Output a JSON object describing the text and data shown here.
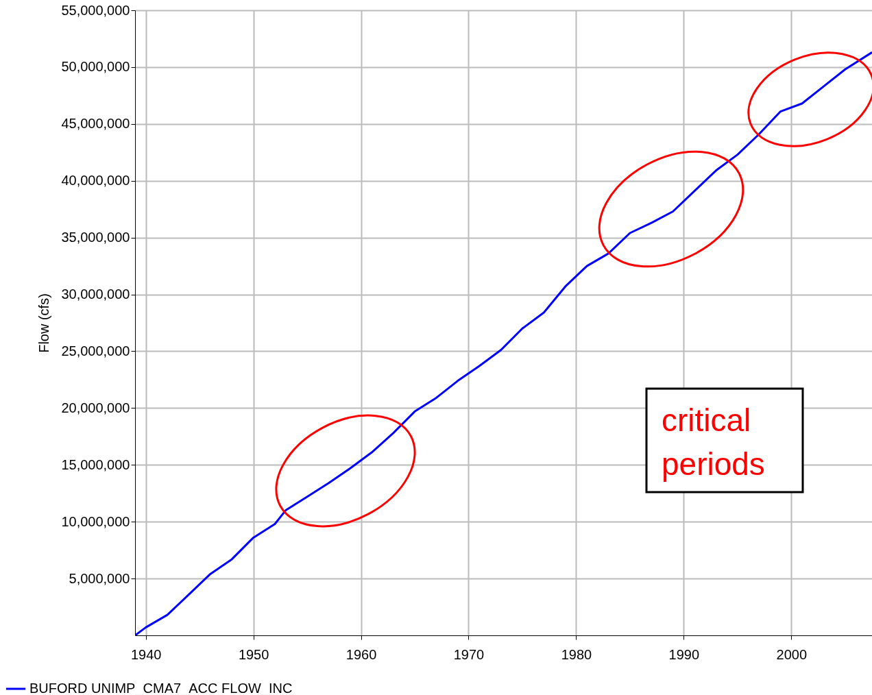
{
  "chart_data": {
    "type": "line",
    "ylabel": "Flow (cfs)",
    "x": [
      1939.0,
      1940,
      1942,
      1944,
      1946,
      1948,
      1950,
      1952,
      1953,
      1955,
      1957,
      1959,
      1961,
      1963,
      1965,
      1967,
      1969,
      1971,
      1973,
      1975,
      1977,
      1979,
      1981,
      1983,
      1985,
      1987,
      1989,
      1991,
      1993,
      1995,
      1997,
      1999,
      2001,
      2003,
      2005,
      2007.5
    ],
    "series": [
      {
        "name": "BUFORD UNIMP_CMA7_ACC FLOW_INC",
        "color": "#0000ff",
        "values": [
          0,
          700000,
          1800000,
          3600000,
          5400000,
          6700000,
          8600000,
          9800000,
          11000000,
          12200000,
          13400000,
          14700000,
          16100000,
          17800000,
          19700000,
          20900000,
          22400000,
          23700000,
          25100000,
          27000000,
          28400000,
          30700000,
          32500000,
          33600000,
          35400000,
          36300000,
          37300000,
          39100000,
          40900000,
          42300000,
          44100000,
          46100000,
          46800000,
          48300000,
          49800000,
          51300000
        ]
      }
    ],
    "xlim": [
      1939,
      2007.5
    ],
    "xticks": [
      1940,
      1950,
      1960,
      1970,
      1980,
      1990,
      2000
    ],
    "ylim": [
      0,
      55000000
    ],
    "yticks": [
      {
        "value": 5000000,
        "label": "5,000,000"
      },
      {
        "value": 10000000,
        "label": "10,000,000"
      },
      {
        "value": 15000000,
        "label": "15,000,000"
      },
      {
        "value": 20000000,
        "label": "20,000,000"
      },
      {
        "value": 25000000,
        "label": "25,000,000"
      },
      {
        "value": 30000000,
        "label": "30,000,000"
      },
      {
        "value": 35000000,
        "label": "35,000,000"
      },
      {
        "value": 40000000,
        "label": "40,000,000"
      },
      {
        "value": 45000000,
        "label": "45,000,000"
      },
      {
        "value": 50000000,
        "label": "50,000,000"
      },
      {
        "value": 55000000,
        "label": "55,000,000"
      }
    ],
    "grid": true,
    "legend": "bottom",
    "marker": "none",
    "line_style": "solid",
    "annotations": [
      "critical periods"
    ]
  }
}
